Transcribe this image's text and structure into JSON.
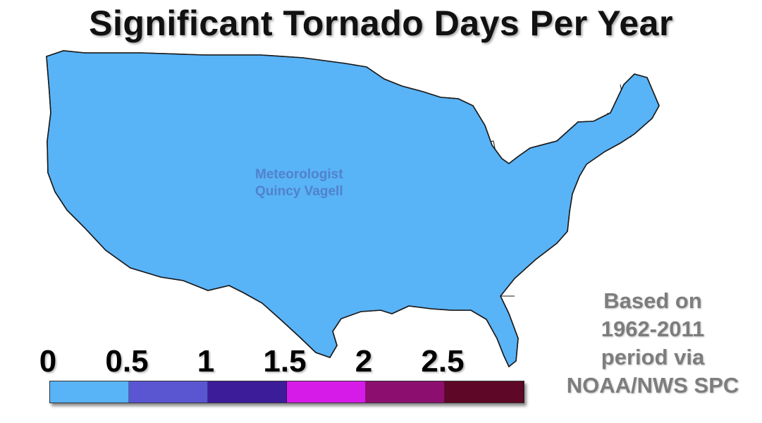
{
  "title": "Significant Tornado Days Per Year",
  "watermark": {
    "line1": "Meteorologist",
    "line2": "Quincy Vagell"
  },
  "note": {
    "lines": [
      "Based on",
      "1962-2011",
      "period via",
      "NOAA/NWS SPC"
    ]
  },
  "legend": {
    "labels": [
      "0",
      "0.5",
      "1",
      "1.5",
      "2",
      "2.5"
    ],
    "colors": [
      "#59b3f7",
      "#5a56d1",
      "#3d1c9a",
      "#d61be8",
      "#8c0f6f",
      "#5e0726"
    ]
  },
  "map": {
    "base_color": "#59b3f7",
    "border_color": "#1a1a1a",
    "zone_colors": {
      "band_05": "#5a56d1",
      "band_1": "#3d1c9a",
      "band_15": "#d61be8",
      "band_2": "#8c0f6f",
      "band_25": "#5e0726"
    }
  }
}
